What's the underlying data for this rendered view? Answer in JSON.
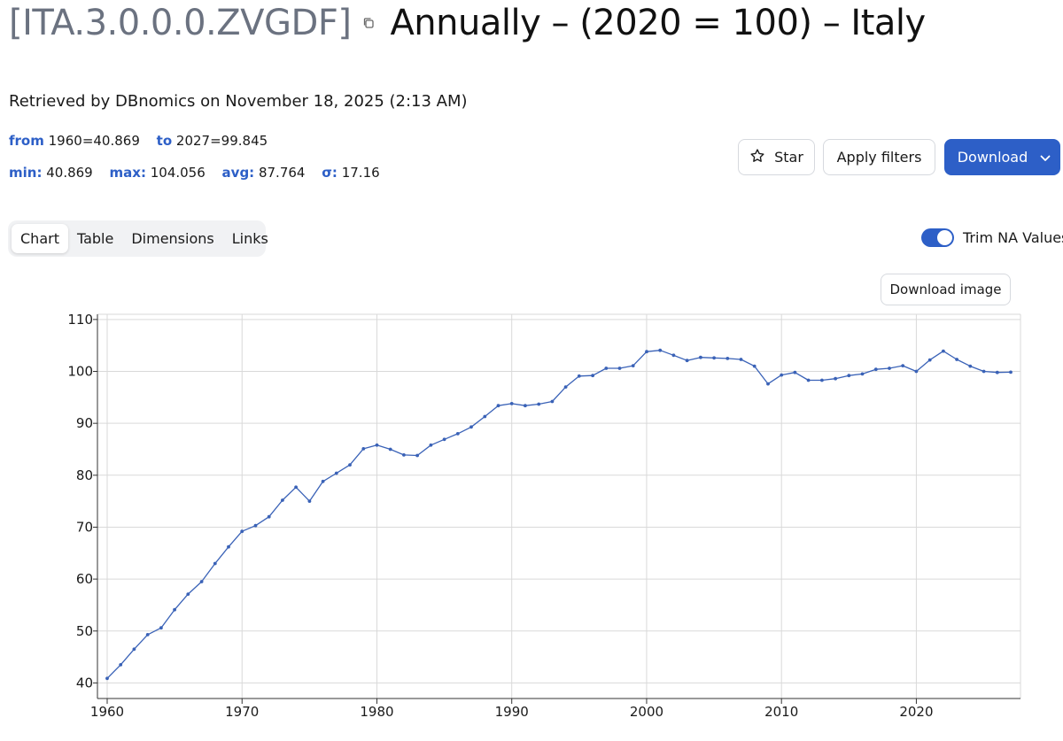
{
  "header": {
    "series_code": "[ITA.3.0.0.0.ZVGDF]",
    "series_name": "Annually – (2020 = 100) – Italy",
    "retrieved": "Retrieved by DBnomics on November 18, 2025 (2:13 AM)"
  },
  "stats": {
    "from_label": "from",
    "from_value": "1960=40.869",
    "to_label": "to",
    "to_value": "2027=99.845",
    "min_label": "min:",
    "min_value": "40.869",
    "max_label": "max:",
    "max_value": "104.056",
    "avg_label": "avg:",
    "avg_value": "87.764",
    "sigma_label": "σ:",
    "sigma_value": "17.16"
  },
  "actions": {
    "star_label": "Star",
    "apply_filters_label": "Apply filters",
    "download_label": "Download"
  },
  "tabs": [
    {
      "label": "Chart",
      "active": true
    },
    {
      "label": "Table",
      "active": false
    },
    {
      "label": "Dimensions",
      "active": false
    },
    {
      "label": "Links",
      "active": false
    }
  ],
  "trim_na": {
    "label": "Trim NA Values",
    "enabled": true
  },
  "download_image_label": "Download image",
  "colors": {
    "accent": "#2d5fc7",
    "line": "#3a62b7",
    "grid": "#d9d9d9"
  },
  "chart_data": {
    "type": "line",
    "title": "",
    "xlabel": "",
    "ylabel": "",
    "xlim": [
      1960,
      2027
    ],
    "ylim": [
      37,
      111
    ],
    "x_ticks": [
      1960,
      1970,
      1980,
      1990,
      2000,
      2010,
      2020
    ],
    "y_ticks": [
      40,
      50,
      60,
      70,
      80,
      90,
      100,
      110
    ],
    "grid": true,
    "legend": "none",
    "series": [
      {
        "x": [
          1960,
          1961,
          1962,
          1963,
          1964,
          1965,
          1966,
          1967,
          1968,
          1969,
          1970,
          1971,
          1972,
          1973,
          1974,
          1975,
          1976,
          1977,
          1978,
          1979,
          1980,
          1981,
          1982,
          1983,
          1984,
          1985,
          1986,
          1987,
          1988,
          1989,
          1990,
          1991,
          1992,
          1993,
          1994,
          1995,
          1996,
          1997,
          1998,
          1999,
          2000,
          2001,
          2002,
          2003,
          2004,
          2005,
          2006,
          2007,
          2008,
          2009,
          2010,
          2011,
          2012,
          2013,
          2014,
          2015,
          2016,
          2017,
          2018,
          2019,
          2020,
          2021,
          2022,
          2023,
          2024,
          2025,
          2026,
          2027
        ],
        "values": [
          40.869,
          43.5,
          46.5,
          49.3,
          50.6,
          54.1,
          57.1,
          59.5,
          63.0,
          66.2,
          69.2,
          70.3,
          72.0,
          75.2,
          77.7,
          75.0,
          78.8,
          80.4,
          82.0,
          85.1,
          85.8,
          85.0,
          83.9,
          83.8,
          85.8,
          86.9,
          88.0,
          89.3,
          91.3,
          93.4,
          93.8,
          93.4,
          93.7,
          94.2,
          97.0,
          99.1,
          99.2,
          100.6,
          100.6,
          101.1,
          103.8,
          104.056,
          103.1,
          102.1,
          102.7,
          102.6,
          102.5,
          102.3,
          101.0,
          97.6,
          99.3,
          99.8,
          98.3,
          98.3,
          98.6,
          99.2,
          99.5,
          100.4,
          100.6,
          101.1,
          100.0,
          102.2,
          103.9,
          102.3,
          101.0,
          100.0,
          99.8,
          99.845
        ]
      }
    ]
  }
}
